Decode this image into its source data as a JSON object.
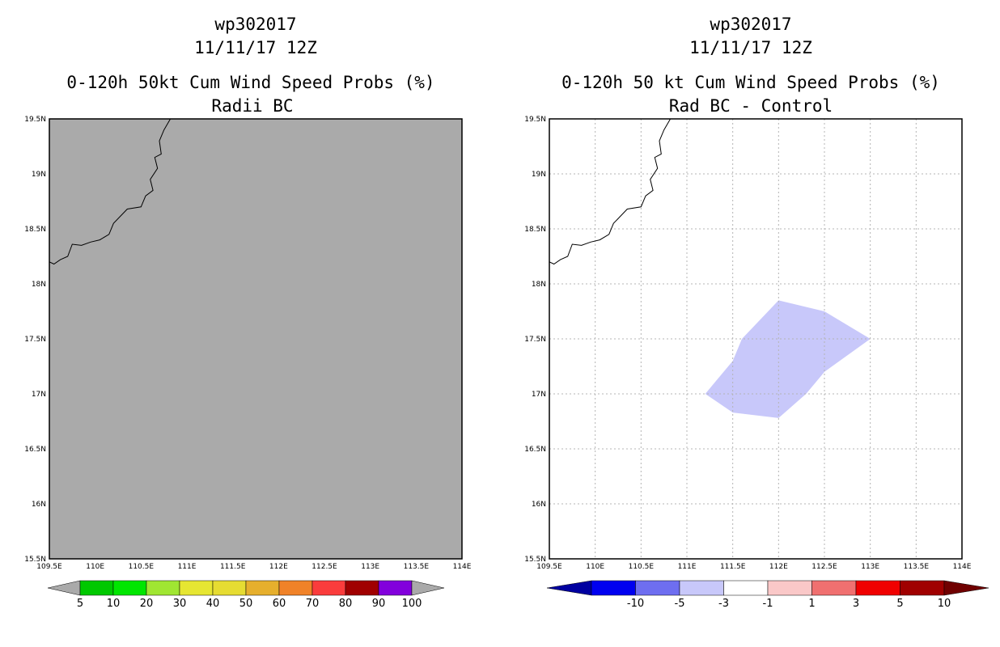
{
  "left_panel": {
    "title_line1": "wp302017",
    "title_line2": "11/11/17 12Z",
    "title_line3": "0-120h 50kt Cum Wind Speed Probs (%)",
    "title_line4": "Radii BC",
    "background_color": "#aaaaaa",
    "colorbar": {
      "labels": [
        "5",
        "10",
        "20",
        "30",
        "40",
        "50",
        "60",
        "70",
        "80",
        "90",
        "100"
      ],
      "colors": [
        "#009900",
        "#00c800",
        "#00e600",
        "#a0e632",
        "#e6e632",
        "#e6dc32",
        "#e6af2d",
        "#f08228",
        "#fa3c3c",
        "#a00000",
        "#8200dc"
      ],
      "end_arrow_color": "#aaaaaa"
    }
  },
  "right_panel": {
    "title_line1": "wp302017",
    "title_line2": "11/11/17 12Z",
    "title_line3": "0-120h 50 kt Cum Wind Speed Probs (%)",
    "title_line4": "Rad BC - Control",
    "shading_color": "#c8c8fa",
    "colorbar": {
      "labels": [
        "-10",
        "-5",
        "-3",
        "-1",
        "1",
        "3",
        "5",
        "10"
      ],
      "colors": [
        "#0000a0",
        "#0000f0",
        "#6e6ef0",
        "#c8c8fa",
        "#ffffff",
        "#fac8c8",
        "#f07070",
        "#f00000",
        "#a00000",
        "#700000"
      ]
    }
  },
  "axes": {
    "x_ticks": [
      "109.5E",
      "110E",
      "110.5E",
      "111E",
      "111.5E",
      "112E",
      "112.5E",
      "113E",
      "113.5E",
      "114E"
    ],
    "y_ticks": [
      "19.5N",
      "19N",
      "18.5N",
      "18N",
      "17.5N",
      "17N",
      "16.5N",
      "16N",
      "15.5N"
    ],
    "lon_range": [
      109.5,
      114.0
    ],
    "lat_range": [
      15.5,
      19.5
    ]
  },
  "difference_region": [
    [
      112.0,
      17.85
    ],
    [
      112.5,
      17.75
    ],
    [
      113.0,
      17.5
    ],
    [
      112.5,
      17.2
    ],
    [
      112.3,
      17.0
    ],
    [
      112.0,
      16.78
    ],
    [
      111.5,
      16.83
    ],
    [
      111.2,
      17.0
    ],
    [
      111.5,
      17.3
    ],
    [
      111.6,
      17.5
    ]
  ],
  "coastline": [
    [
      110.82,
      19.5
    ],
    [
      110.75,
      19.4
    ],
    [
      110.7,
      19.3
    ],
    [
      110.72,
      19.18
    ],
    [
      110.65,
      19.15
    ],
    [
      110.68,
      19.05
    ],
    [
      110.6,
      18.95
    ],
    [
      110.63,
      18.85
    ],
    [
      110.55,
      18.8
    ],
    [
      110.5,
      18.7
    ],
    [
      110.35,
      18.68
    ],
    [
      110.2,
      18.55
    ],
    [
      110.15,
      18.45
    ],
    [
      110.05,
      18.4
    ],
    [
      109.95,
      18.38
    ],
    [
      109.85,
      18.35
    ],
    [
      109.75,
      18.36
    ],
    [
      109.7,
      18.25
    ],
    [
      109.62,
      18.22
    ],
    [
      109.55,
      18.18
    ],
    [
      109.5,
      18.2
    ]
  ]
}
